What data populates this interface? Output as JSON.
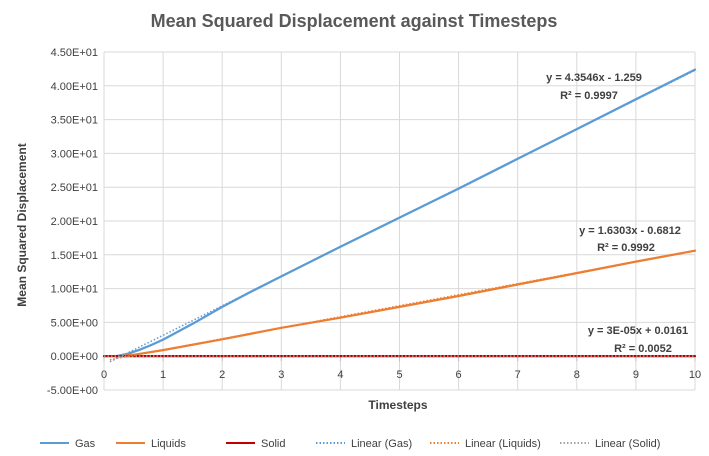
{
  "chart_data": {
    "type": "line",
    "title": "Mean Squared Displacement  against Timesteps",
    "xlabel": "Timesteps",
    "ylabel": "Mean Squared Displacement",
    "xlim": [
      0,
      10
    ],
    "ylim": [
      -5,
      45
    ],
    "x_ticks": [
      "0",
      "1",
      "2",
      "3",
      "4",
      "5",
      "6",
      "7",
      "8",
      "9",
      "10"
    ],
    "y_ticks": [
      "-5.00E+00",
      "0.00E+00",
      "5.00E+00",
      "1.00E+01",
      "1.50E+01",
      "2.00E+01",
      "2.50E+01",
      "3.00E+01",
      "3.50E+01",
      "4.00E+01",
      "4.50E+01"
    ],
    "y_tick_values": [
      -5,
      0,
      5,
      10,
      15,
      20,
      25,
      30,
      35,
      40,
      45
    ],
    "grid": true,
    "legend_position": "bottom",
    "series": [
      {
        "name": "Gas",
        "color": "#5B9BD5",
        "x": [
          0.2,
          0.4,
          0.6,
          0.8,
          1,
          1.5,
          2,
          2.5,
          3,
          4,
          5,
          6,
          7,
          8,
          9,
          10
        ],
        "y": [
          0.0,
          0.35,
          0.95,
          1.65,
          2.45,
          4.8,
          7.3,
          9.6,
          11.8,
          16.2,
          20.5,
          24.8,
          29.2,
          33.6,
          38.0,
          42.4
        ]
      },
      {
        "name": "Liquids",
        "color": "#ED7D31",
        "x": [
          0.2,
          0.5,
          1,
          2,
          3,
          4,
          5,
          6,
          7,
          8,
          9,
          10
        ],
        "y": [
          0.0,
          0.2,
          0.9,
          2.5,
          4.2,
          5.7,
          7.3,
          8.9,
          10.6,
          12.3,
          14.0,
          15.6
        ]
      },
      {
        "name": "Solid",
        "color": "#C00000",
        "x": [
          0,
          10
        ],
        "y": [
          0.016,
          0.016
        ]
      }
    ],
    "trendlines": [
      {
        "name": "Linear (Gas)",
        "color": "#5B9BD5",
        "slope": 4.3546,
        "intercept": -1.259,
        "x_range": [
          0.1,
          10
        ]
      },
      {
        "name": "Linear (Liquids)",
        "color": "#ED7D31",
        "slope": 1.6303,
        "intercept": -0.6812,
        "x_range": [
          0.1,
          10
        ]
      },
      {
        "name": "Linear (Solid)",
        "color": "#A5A5A5",
        "slope": 3e-05,
        "intercept": 0.0161,
        "x_range": [
          0,
          10
        ]
      }
    ],
    "annotations": [
      {
        "equation": "y = 4.3546x - 1.259",
        "r2": "R² = 0.9997"
      },
      {
        "equation": "y = 1.6303x - 0.6812",
        "r2": "R² = 0.9992"
      },
      {
        "equation": "y = 3E-05x + 0.0161",
        "r2": "R² = 0.0052"
      }
    ],
    "legend": [
      {
        "label": "Gas",
        "color": "#5B9BD5",
        "style": "solid"
      },
      {
        "label": "Liquids",
        "color": "#ED7D31",
        "style": "solid"
      },
      {
        "label": "Solid",
        "color": "#C00000",
        "style": "solid"
      },
      {
        "label": "Linear (Gas)",
        "color": "#5B9BD5",
        "style": "dotted"
      },
      {
        "label": "Linear (Liquids)",
        "color": "#ED7D31",
        "style": "dotted"
      },
      {
        "label": "Linear (Solid)",
        "color": "#A5A5A5",
        "style": "dotted"
      }
    ]
  }
}
